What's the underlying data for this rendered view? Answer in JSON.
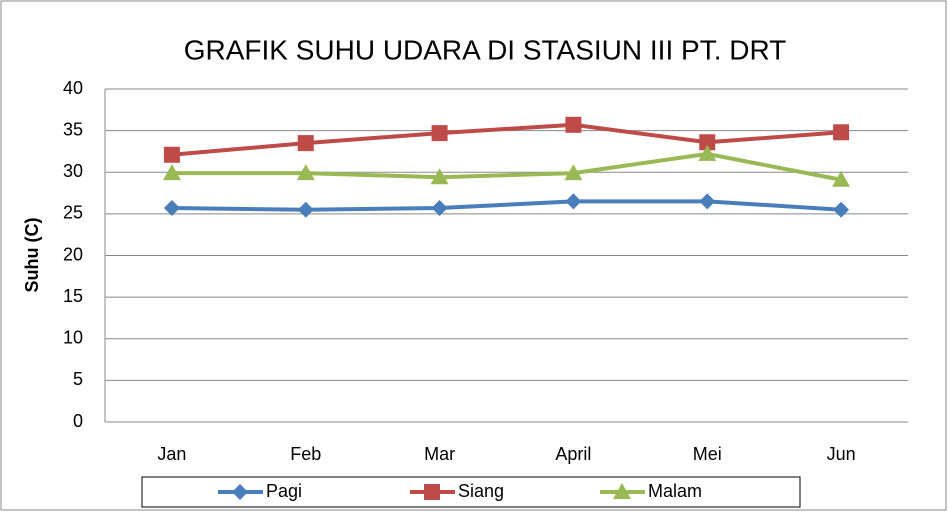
{
  "chart_data": {
    "type": "line",
    "title": "GRAFIK SUHU UDARA DI STASIUN III PT. DRT",
    "y_label": "Suhu (C)",
    "categories": [
      "Jan",
      "Feb",
      "Mar",
      "April",
      "Mei",
      "Jun"
    ],
    "series": [
      {
        "name": "Pagi",
        "color": "#4a7ebb",
        "marker": "diamond",
        "values": [
          25.7,
          25.5,
          25.7,
          26.5,
          26.5,
          25.5
        ]
      },
      {
        "name": "Siang",
        "color": "#be4b48",
        "marker": "square",
        "values": [
          32.1,
          33.5,
          34.7,
          35.7,
          33.6,
          34.8
        ]
      },
      {
        "name": "Malam",
        "color": "#98b954",
        "marker": "triangle",
        "values": [
          29.9,
          29.9,
          29.4,
          29.9,
          32.2,
          29.1
        ]
      }
    ],
    "ylim": [
      0,
      40
    ],
    "yticks": [
      0,
      5,
      10,
      15,
      20,
      25,
      30,
      35,
      40
    ],
    "grid": true,
    "legend": "bottom"
  }
}
